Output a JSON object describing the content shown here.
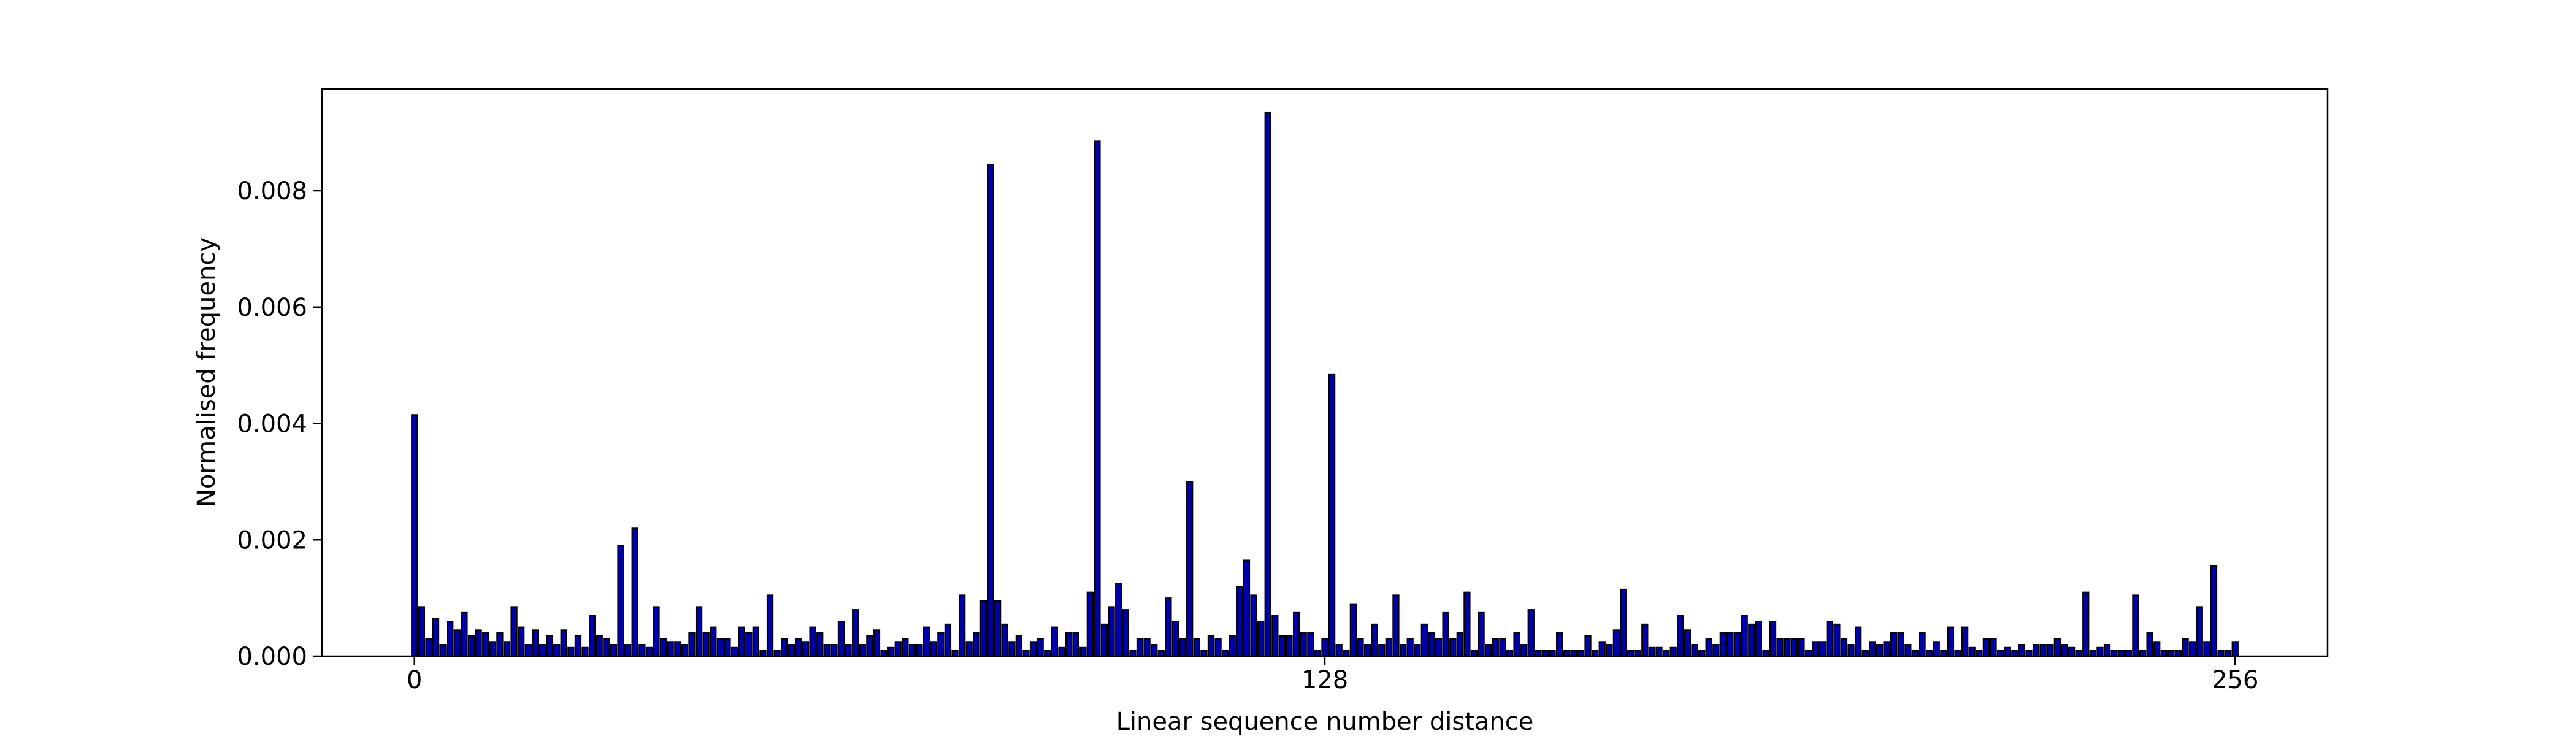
{
  "chart_data": {
    "type": "bar",
    "title": "",
    "xlabel": "Linear sequence number distance",
    "ylabel": "Normalised frequency",
    "xlim": [
      -13,
      269
    ],
    "ylim": [
      0,
      0.00975
    ],
    "xticks": [
      0,
      128,
      256
    ],
    "xtick_labels": [
      "0",
      "128",
      "256"
    ],
    "yticks": [
      0,
      0.002,
      0.004,
      0.006,
      0.008
    ],
    "ytick_labels": [
      "0.000",
      "0.002",
      "0.004",
      "0.006",
      "0.008"
    ],
    "grid": false,
    "legend": "none",
    "bar_color": "#0000aa",
    "edge_color": "#000000",
    "x": [
      0,
      1,
      2,
      3,
      4,
      5,
      6,
      7,
      8,
      9,
      10,
      11,
      12,
      13,
      14,
      15,
      16,
      17,
      18,
      19,
      20,
      21,
      22,
      23,
      24,
      25,
      26,
      27,
      28,
      29,
      30,
      31,
      32,
      33,
      34,
      35,
      36,
      37,
      38,
      39,
      40,
      41,
      42,
      43,
      44,
      45,
      46,
      47,
      48,
      49,
      50,
      51,
      52,
      53,
      54,
      55,
      56,
      57,
      58,
      59,
      60,
      61,
      62,
      63,
      64,
      65,
      66,
      67,
      68,
      69,
      70,
      71,
      72,
      73,
      74,
      75,
      76,
      77,
      78,
      79,
      80,
      81,
      82,
      83,
      84,
      85,
      86,
      87,
      88,
      89,
      90,
      91,
      92,
      93,
      94,
      95,
      96,
      97,
      98,
      99,
      100,
      101,
      102,
      103,
      104,
      105,
      106,
      107,
      108,
      109,
      110,
      111,
      112,
      113,
      114,
      115,
      116,
      117,
      118,
      119,
      120,
      121,
      122,
      123,
      124,
      125,
      126,
      127,
      128,
      129,
      130,
      131,
      132,
      133,
      134,
      135,
      136,
      137,
      138,
      139,
      140,
      141,
      142,
      143,
      144,
      145,
      146,
      147,
      148,
      149,
      150,
      151,
      152,
      153,
      154,
      155,
      156,
      157,
      158,
      159,
      160,
      161,
      162,
      163,
      164,
      165,
      166,
      167,
      168,
      169,
      170,
      171,
      172,
      173,
      174,
      175,
      176,
      177,
      178,
      179,
      180,
      181,
      182,
      183,
      184,
      185,
      186,
      187,
      188,
      189,
      190,
      191,
      192,
      193,
      194,
      195,
      196,
      197,
      198,
      199,
      200,
      201,
      202,
      203,
      204,
      205,
      206,
      207,
      208,
      209,
      210,
      211,
      212,
      213,
      214,
      215,
      216,
      217,
      218,
      219,
      220,
      221,
      222,
      223,
      224,
      225,
      226,
      227,
      228,
      229,
      230,
      231,
      232,
      233,
      234,
      235,
      236,
      237,
      238,
      239,
      240,
      241,
      242,
      243,
      244,
      245,
      246,
      247,
      248,
      249,
      250,
      251,
      252,
      253,
      254,
      255,
      256
    ],
    "values": [
      0.00415,
      0.00085,
      0.0003,
      0.00065,
      0.0002,
      0.0006,
      0.00045,
      0.00075,
      0.00035,
      0.00045,
      0.0004,
      0.00025,
      0.0004,
      0.00025,
      0.00085,
      0.0005,
      0.0002,
      0.00045,
      0.0002,
      0.00035,
      0.0002,
      0.00045,
      0.00015,
      0.00035,
      0.00015,
      0.0007,
      0.00035,
      0.0003,
      0.0002,
      0.0019,
      0.0002,
      0.0022,
      0.0002,
      0.00015,
      0.00085,
      0.0003,
      0.00025,
      0.00025,
      0.0002,
      0.0004,
      0.00085,
      0.0004,
      0.0005,
      0.0003,
      0.0003,
      0.00015,
      0.0005,
      0.0004,
      0.0005,
      0.0001,
      0.00105,
      0.0001,
      0.0003,
      0.0002,
      0.0003,
      0.00025,
      0.0005,
      0.0004,
      0.0002,
      0.0002,
      0.0006,
      0.0002,
      0.0008,
      0.0002,
      0.00035,
      0.00045,
      0.0001,
      0.00015,
      0.00025,
      0.0003,
      0.0002,
      0.0002,
      0.0005,
      0.00025,
      0.0004,
      0.00055,
      0.0001,
      0.00105,
      0.00025,
      0.0004,
      0.00095,
      0.00845,
      0.00095,
      0.00055,
      0.00025,
      0.00035,
      0.0001,
      0.00025,
      0.0003,
      0.0001,
      0.0005,
      0.00015,
      0.0004,
      0.0004,
      0.00015,
      0.0011,
      0.00885,
      0.00055,
      0.00085,
      0.00125,
      0.0008,
      0.0001,
      0.0003,
      0.0003,
      0.0002,
      0.0001,
      0.001,
      0.0006,
      0.0003,
      0.003,
      0.0003,
      0.0001,
      0.00035,
      0.0003,
      0.0001,
      0.00035,
      0.0012,
      0.00165,
      0.00105,
      0.0006,
      0.00935,
      0.0007,
      0.00035,
      0.00035,
      0.00075,
      0.0004,
      0.0004,
      0.0001,
      0.0003,
      0.00485,
      0.0002,
      0.0001,
      0.0009,
      0.0003,
      0.0002,
      0.00055,
      0.0002,
      0.0003,
      0.00105,
      0.0002,
      0.0003,
      0.0002,
      0.00055,
      0.0004,
      0.0003,
      0.00075,
      0.0003,
      0.0004,
      0.0011,
      0.0001,
      0.00075,
      0.0002,
      0.0003,
      0.0003,
      0.0001,
      0.0004,
      0.0002,
      0.0008,
      0.0001,
      0.0001,
      0.0001,
      0.0004,
      0.0001,
      0.0001,
      0.0001,
      0.00035,
      0.0001,
      0.00025,
      0.0002,
      0.00045,
      0.00115,
      0.0001,
      0.0001,
      0.00055,
      0.00015,
      0.00015,
      0.0001,
      0.00015,
      0.0007,
      0.00045,
      0.0002,
      0.0001,
      0.0003,
      0.0002,
      0.0004,
      0.0004,
      0.0004,
      0.0007,
      0.00055,
      0.0006,
      0.0001,
      0.0006,
      0.0003,
      0.0003,
      0.0003,
      0.0003,
      0.0001,
      0.00025,
      0.00025,
      0.0006,
      0.00055,
      0.0003,
      0.0002,
      0.0005,
      0.0001,
      0.00025,
      0.0002,
      0.00025,
      0.0004,
      0.0004,
      0.0002,
      0.0001,
      0.0004,
      0.0001,
      0.00025,
      0.0001,
      0.0005,
      0.0001,
      0.0005,
      0.00015,
      0.0001,
      0.0003,
      0.0003,
      0.0001,
      0.00015,
      0.0001,
      0.0002,
      0.0001,
      0.0002,
      0.0002,
      0.0002,
      0.0003,
      0.0002,
      0.00015,
      0.0001,
      0.0011,
      0.0001,
      0.00015,
      0.0002,
      0.0001,
      0.0001,
      0.0001,
      0.00105,
      0.0001,
      0.0004,
      0.00025,
      0.0001,
      0.0001,
      0.0001,
      0.0003,
      0.00025,
      0.00085,
      0.00025,
      0.00155,
      0.0001,
      0.0001,
      0.00025
    ]
  }
}
